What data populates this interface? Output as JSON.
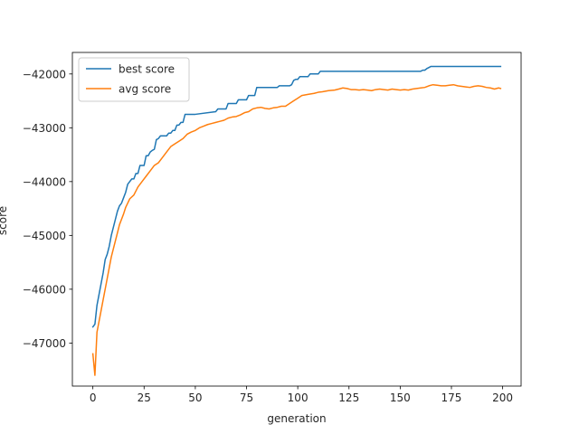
{
  "chart_data": {
    "type": "line",
    "title": "",
    "xlabel": "generation",
    "ylabel": "score",
    "xlim": [
      -10,
      209
    ],
    "ylim": [
      -47800,
      -41600
    ],
    "xticks": [
      0,
      25,
      50,
      75,
      100,
      125,
      150,
      175,
      200
    ],
    "yticks": [
      -47000,
      -46000,
      -45000,
      -44000,
      -43000,
      -42000
    ],
    "xtick_labels": [
      "0",
      "25",
      "50",
      "75",
      "100",
      "125",
      "150",
      "175",
      "200"
    ],
    "ytick_labels": [
      "−47000",
      "−46000",
      "−45000",
      "−44000",
      "−43000",
      "−42000"
    ],
    "grid": false,
    "legend_position": "upper-left",
    "series": [
      {
        "name": "best score",
        "color": "#1f77b4",
        "x": [
          0,
          1,
          2,
          3,
          4,
          5,
          6,
          7,
          8,
          9,
          10,
          11,
          12,
          13,
          14,
          15,
          16,
          17,
          18,
          19,
          20,
          21,
          22,
          23,
          24,
          25,
          26,
          27,
          28,
          29,
          30,
          31,
          32,
          33,
          34,
          35,
          36,
          37,
          38,
          39,
          40,
          41,
          42,
          43,
          44,
          45,
          46,
          47,
          48,
          49,
          50,
          60,
          61,
          65,
          66,
          70,
          71,
          75,
          76,
          79,
          80,
          90,
          91,
          96,
          97,
          98,
          99,
          100,
          101,
          105,
          106,
          110,
          111,
          160,
          161,
          162,
          163,
          164,
          165,
          199
        ],
        "y": [
          -46700,
          -46650,
          -46300,
          -46100,
          -45900,
          -45700,
          -45450,
          -45350,
          -45200,
          -45000,
          -44850,
          -44700,
          -44550,
          -44450,
          -44400,
          -44300,
          -44200,
          -44050,
          -44000,
          -43950,
          -43950,
          -43850,
          -43850,
          -43700,
          -43700,
          -43700,
          -43520,
          -43520,
          -43450,
          -43420,
          -43400,
          -43220,
          -43200,
          -43150,
          -43150,
          -43150,
          -43150,
          -43100,
          -43100,
          -43050,
          -43050,
          -42950,
          -42950,
          -42900,
          -42900,
          -42750,
          -42750,
          -42750,
          -42750,
          -42750,
          -42750,
          -42700,
          -42650,
          -42650,
          -42550,
          -42550,
          -42480,
          -42480,
          -42400,
          -42400,
          -42250,
          -42250,
          -42220,
          -42220,
          -42200,
          -42120,
          -42100,
          -42100,
          -42050,
          -42050,
          -42000,
          -42000,
          -41950,
          -41950,
          -41930,
          -41930,
          -41900,
          -41880,
          -41860,
          -41860
        ]
      },
      {
        "name": "avg score",
        "color": "#ff7f0e",
        "x": [
          0,
          1,
          2,
          3,
          4,
          5,
          6,
          7,
          8,
          9,
          10,
          11,
          12,
          13,
          14,
          15,
          16,
          17,
          18,
          20,
          22,
          24,
          26,
          28,
          30,
          32,
          34,
          36,
          38,
          40,
          42,
          44,
          46,
          48,
          50,
          52,
          54,
          56,
          58,
          60,
          62,
          64,
          66,
          68,
          70,
          72,
          74,
          76,
          78,
          80,
          82,
          84,
          86,
          88,
          90,
          92,
          94,
          96,
          98,
          100,
          102,
          105,
          108,
          110,
          112,
          115,
          118,
          120,
          122,
          124,
          126,
          128,
          130,
          132,
          134,
          136,
          138,
          140,
          142,
          144,
          146,
          148,
          150,
          152,
          154,
          156,
          158,
          160,
          162,
          164,
          166,
          168,
          170,
          172,
          174,
          176,
          178,
          180,
          182,
          184,
          186,
          188,
          190,
          192,
          194,
          196,
          198,
          199
        ],
        "y": [
          -47200,
          -47600,
          -46800,
          -46600,
          -46400,
          -46200,
          -46000,
          -45800,
          -45600,
          -45400,
          -45250,
          -45100,
          -44950,
          -44800,
          -44700,
          -44600,
          -44480,
          -44400,
          -44320,
          -44250,
          -44100,
          -44000,
          -43900,
          -43800,
          -43700,
          -43650,
          -43550,
          -43450,
          -43350,
          -43300,
          -43250,
          -43200,
          -43120,
          -43080,
          -43050,
          -43000,
          -42970,
          -42940,
          -42920,
          -42900,
          -42880,
          -42860,
          -42820,
          -42800,
          -42790,
          -42760,
          -42720,
          -42700,
          -42650,
          -42630,
          -42620,
          -42640,
          -42650,
          -42630,
          -42620,
          -42600,
          -42600,
          -42550,
          -42500,
          -42450,
          -42400,
          -42380,
          -42360,
          -42340,
          -42330,
          -42310,
          -42300,
          -42280,
          -42260,
          -42270,
          -42290,
          -42290,
          -42300,
          -42290,
          -42300,
          -42310,
          -42290,
          -42280,
          -42290,
          -42300,
          -42280,
          -42290,
          -42300,
          -42290,
          -42300,
          -42280,
          -42270,
          -42260,
          -42250,
          -42220,
          -42200,
          -42210,
          -42220,
          -42220,
          -42210,
          -42200,
          -42220,
          -42230,
          -42240,
          -42250,
          -42230,
          -42220,
          -42230,
          -42250,
          -42260,
          -42280,
          -42260,
          -42270
        ]
      }
    ]
  }
}
